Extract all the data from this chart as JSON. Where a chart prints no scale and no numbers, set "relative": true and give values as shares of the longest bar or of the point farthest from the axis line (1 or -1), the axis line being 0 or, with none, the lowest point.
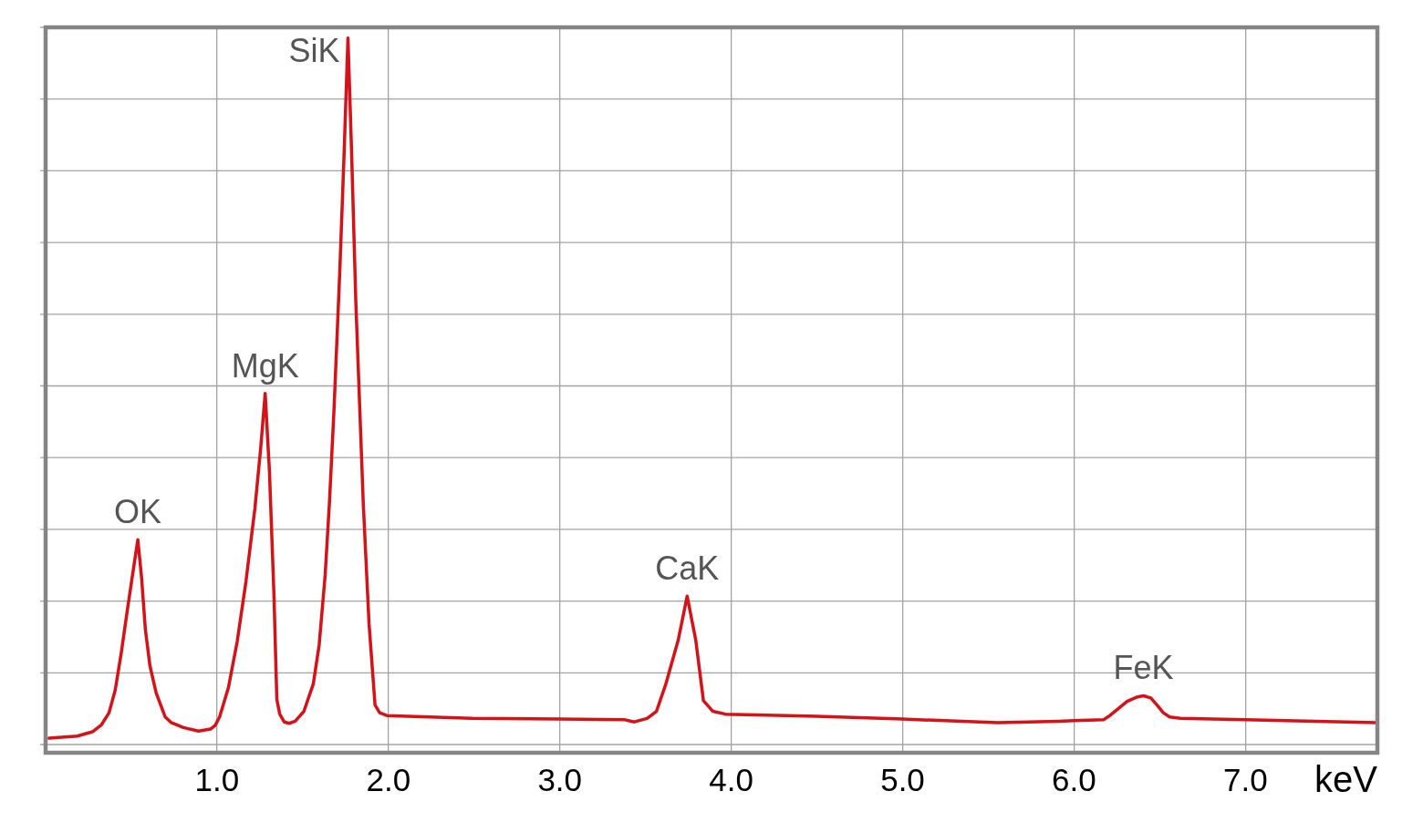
{
  "chart_data": {
    "type": "line",
    "xlabel": "keV",
    "relative": true,
    "color": "#d51218",
    "marker": "none",
    "grid": true,
    "tick_labels": "x",
    "xlim": [
      0,
      7.77
    ],
    "xticks": [
      {
        "value": 1,
        "label": "1.0"
      },
      {
        "value": 2,
        "label": "2.0"
      },
      {
        "value": 3,
        "label": "3.0"
      },
      {
        "value": 4,
        "label": "4.0"
      },
      {
        "value": 5,
        "label": "5.0"
      },
      {
        "value": 6,
        "label": "6.0"
      },
      {
        "value": 7,
        "label": "7.0"
      }
    ],
    "x": [
      0.02,
      0.185,
      0.273,
      0.326,
      0.37,
      0.406,
      0.441,
      0.476,
      0.512,
      0.538,
      0.56,
      0.582,
      0.609,
      0.645,
      0.698,
      0.733,
      0.804,
      0.892,
      0.963,
      0.989,
      1.015,
      1.067,
      1.118,
      1.169,
      1.221,
      1.255,
      1.281,
      1.306,
      1.332,
      1.349,
      1.366,
      1.392,
      1.422,
      1.456,
      1.507,
      1.562,
      1.596,
      1.631,
      1.656,
      1.682,
      1.716,
      1.742,
      1.764,
      1.785,
      1.81,
      1.827,
      1.853,
      1.887,
      1.922,
      1.949,
      1.991,
      2.492,
      3.0,
      3.38,
      3.435,
      3.509,
      3.564,
      3.619,
      3.691,
      3.743,
      3.793,
      3.838,
      3.893,
      3.966,
      4.5,
      5.0,
      5.556,
      5.909,
      6.0,
      6.172,
      6.209,
      6.255,
      6.31,
      6.365,
      6.405,
      6.448,
      6.484,
      6.521,
      6.558,
      6.622,
      7.0,
      7.764
    ],
    "values": [
      0.009,
      0.012,
      0.018,
      0.028,
      0.045,
      0.077,
      0.129,
      0.189,
      0.248,
      0.29,
      0.236,
      0.163,
      0.111,
      0.073,
      0.039,
      0.031,
      0.024,
      0.019,
      0.022,
      0.027,
      0.039,
      0.081,
      0.146,
      0.231,
      0.334,
      0.42,
      0.497,
      0.386,
      0.214,
      0.064,
      0.043,
      0.032,
      0.03,
      0.033,
      0.047,
      0.086,
      0.141,
      0.24,
      0.343,
      0.471,
      0.668,
      0.84,
      1,
      0.84,
      0.626,
      0.514,
      0.343,
      0.171,
      0.056,
      0.045,
      0.041,
      0.037,
      0.036,
      0.035,
      0.032,
      0.037,
      0.047,
      0.086,
      0.148,
      0.21,
      0.148,
      0.062,
      0.047,
      0.043,
      0.04,
      0.036,
      0.031,
      0.033,
      0.034,
      0.035,
      0.041,
      0.05,
      0.061,
      0.067,
      0.069,
      0.066,
      0.056,
      0.045,
      0.039,
      0.037,
      0.035,
      0.031
    ],
    "annotations": [
      {
        "text": "OK",
        "x": 0.538,
        "y": 0.29
      },
      {
        "text": "MgK",
        "x": 1.281,
        "y": 0.497
      },
      {
        "text": "SiK",
        "x": 1.764,
        "y": 1
      },
      {
        "text": "CaK",
        "x": 3.743,
        "y": 0.21
      },
      {
        "text": "FeK",
        "x": 6.405,
        "y": 0.069
      }
    ]
  }
}
